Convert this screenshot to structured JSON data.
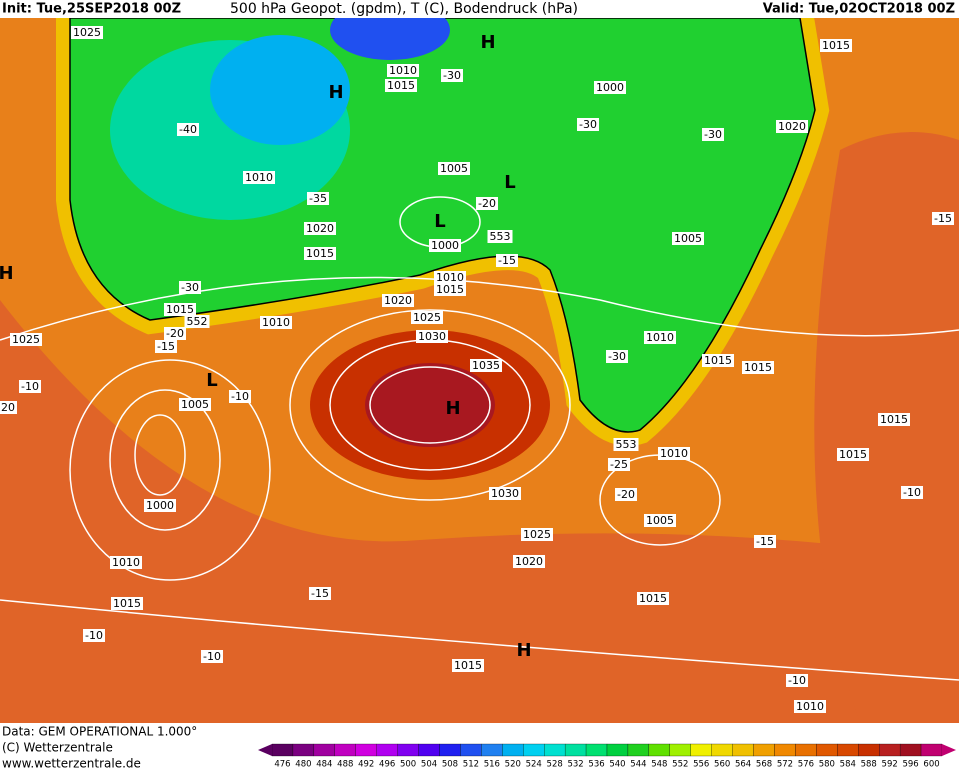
{
  "header": {
    "init": "Init: Tue,25SEP2018 00Z",
    "title": "500 hPa Geopot. (gpdm), T (C), Bodendruck (hPa)",
    "valid": "Valid: Tue,02OCT2018 00Z"
  },
  "footer": {
    "data": "Data: GEM OPERATIONAL 1.000°",
    "copyright": "(C) Wetterzentrale",
    "url": "www.wetterzentrale.de"
  },
  "map": {
    "labels": [
      "1025",
      "1010",
      "1015",
      "-30",
      "H",
      "H",
      "1000",
      "-40",
      "-30",
      "-30",
      "1020",
      "1015",
      "1010",
      "1005",
      "L",
      "-35",
      "-20",
      "L",
      "1020",
      "1000",
      "553",
      "1015",
      "-15",
      "1005",
      "-15",
      "H",
      "1010",
      "1015",
      "-30",
      "1015",
      "1020",
      "552",
      "1010",
      "-20",
      "1025",
      "1025",
      "-15",
      "1030",
      "1010",
      "-30",
      "1015",
      "1015",
      "1035",
      "L",
      "-10",
      "-10",
      "1005",
      "20",
      "H",
      "1015",
      "553",
      "1010",
      "1015",
      "-25",
      "-20",
      "1030",
      "-10",
      "1000",
      "1005",
      "1025",
      "-15",
      "1020",
      "1010",
      "-15",
      "1015",
      "1015",
      "-10",
      "-10",
      "1015",
      "H",
      "-10",
      "1010"
    ]
  },
  "legend": {
    "values": [
      476,
      480,
      484,
      488,
      492,
      496,
      500,
      504,
      508,
      512,
      516,
      520,
      524,
      528,
      532,
      536,
      540,
      544,
      548,
      552,
      556,
      560,
      564,
      568,
      572,
      576,
      580,
      584,
      588,
      592,
      596,
      600
    ],
    "colors": [
      "#5a0060",
      "#7a0080",
      "#a000a0",
      "#c000c0",
      "#d000e0",
      "#b000f0",
      "#8000f0",
      "#5000f0",
      "#2020f0",
      "#2050f0",
      "#2080f0",
      "#00b0f0",
      "#00d0f0",
      "#00e0d0",
      "#00e0a0",
      "#00e070",
      "#00d040",
      "#20d020",
      "#60e000",
      "#a0f000",
      "#f0f000",
      "#f0d800",
      "#f0c000",
      "#f0a000",
      "#f08800",
      "#e87000",
      "#e05800",
      "#d84800",
      "#c83000",
      "#b82020",
      "#a01020",
      "#c00070"
    ]
  }
}
